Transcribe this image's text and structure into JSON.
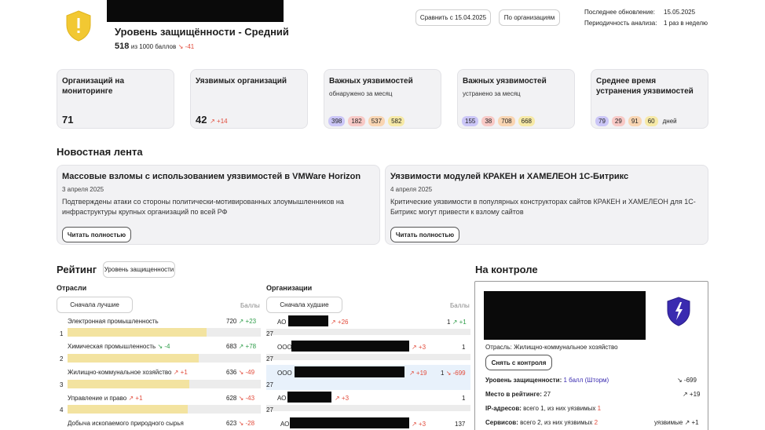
{
  "header": {
    "title": "Уровень защищённости - Средний",
    "score": "518",
    "score_suffix": "из 1000 баллов",
    "score_delta": "↘ -41",
    "compare_button": "Сравнить с 15.04.2025",
    "by_org_button": "По организациям",
    "last_update_label": "Последнее обновление:",
    "last_update_value": "15.05.2025",
    "period_label": "Периодичность анализа:",
    "period_value": "1 раз в неделю",
    "shield_color": "#f2c832",
    "shield_mark": "!"
  },
  "cards": [
    {
      "title": "Организаций на мониторинге",
      "value": "71"
    },
    {
      "title": "Уязвимых организаций",
      "value": "42",
      "delta": "↗ +14"
    },
    {
      "title": "Важных уязвимостей",
      "sub": "обнаружено за месяц",
      "pills": [
        "398",
        "182",
        "537",
        "582"
      ]
    },
    {
      "title": "Важных уязвимостей",
      "sub": "устранено за месяц",
      "pills": [
        "155",
        "38",
        "708",
        "668"
      ]
    },
    {
      "title": "Среднее время устранения уязвимостей",
      "pills": [
        "79",
        "29",
        "91",
        "60"
      ],
      "unit": "дней"
    }
  ],
  "news": {
    "heading": "Новостная лента",
    "items": [
      {
        "title": "Массовые взломы с использованием уязвимостей в VMWare Horizon",
        "date": "3 апреля 2025",
        "text": "Подтверждены атаки со стороны политически-мотивированных злоумышленников на инфраструктуры крупных организаций по всей РФ",
        "button": "Читать полностью"
      },
      {
        "title": "Уязвимости модулей КРАКЕН и ХАМЕЛЕОН 1С-Битрикс",
        "date": "4 апреля 2025",
        "text": "Критические уязвимости в популярных конструкторах сайтов КРАКЕН и ХАМЕЛЕОН для 1С-Битрикс могут привести к взлому сайтов",
        "button": "Читать полностью"
      }
    ]
  },
  "rating": {
    "heading": "Рейтинг",
    "mode_button": "Уровень защищенности",
    "industries": {
      "heading": "Отрасли",
      "sort_button": "Сначала лучшие",
      "col_label": "Баллы",
      "rows": [
        {
          "idx": "1",
          "name": "Электронная промышленность",
          "name_delta": "",
          "value": "720",
          "delta": "↗ +23",
          "fill": 0.72
        },
        {
          "idx": "2",
          "name": "Химическая промышленность",
          "name_delta": "↘ -4",
          "value": "683",
          "delta": "↗ +78",
          "fill": 0.68
        },
        {
          "idx": "3",
          "name": "Жилищно-коммунальное хозяйство",
          "name_delta": "↗ +1",
          "value": "636",
          "delta": "↘ -49",
          "fill": 0.63
        },
        {
          "idx": "4",
          "name": "Управление и право",
          "name_delta": "↗ +1",
          "value": "628",
          "delta": "↘ -43",
          "fill": 0.62
        },
        {
          "idx": "",
          "name": "Добыча ископаемого природного сырья",
          "name_delta": "",
          "value": "623",
          "delta": "↘ -28",
          "fill": 0.62
        }
      ]
    },
    "organizations": {
      "heading": "Организации",
      "sort_button": "Сначала худшие",
      "col_label": "Баллы",
      "rows": [
        {
          "prefix": "АО",
          "delta": "↗ +26",
          "value": "1",
          "vdelta": "↗ +1",
          "num": "27"
        },
        {
          "prefix": "ООО",
          "delta": "↗ +3",
          "value": "1",
          "vdelta": "",
          "num": "27"
        },
        {
          "prefix": "ООО",
          "delta": "↗ +19",
          "value": "1",
          "vdelta": "↘ -699",
          "num": "27"
        },
        {
          "prefix": "АО",
          "delta": "↗ +3",
          "value": "1",
          "vdelta": "",
          "num": "27"
        },
        {
          "prefix": "АО",
          "delta": "↗ +3",
          "value": "137",
          "vdelta": "",
          "num": ""
        }
      ]
    }
  },
  "control": {
    "heading": "На контроле",
    "industry": "Отрасль: Жилищно-коммунальное хозяйство",
    "remove_button": "Снять с контроля",
    "security_label": "Уровень защищенности:",
    "security_value": "1 балл (Шторм)",
    "security_delta": "↘ -699",
    "rank_label": "Место в рейтинге:",
    "rank_value": "27",
    "rank_delta": "↗ +19",
    "ip_label": "IP-адресов:",
    "ip_value": "всего 1, из них уязвимых",
    "ip_vuln": "1",
    "svc_label": "Сервисов:",
    "svc_value": "всего 2, из них уязвимых",
    "svc_vuln": "2",
    "svc_delta_label": "уязвимые",
    "svc_delta": "↗ +1"
  }
}
